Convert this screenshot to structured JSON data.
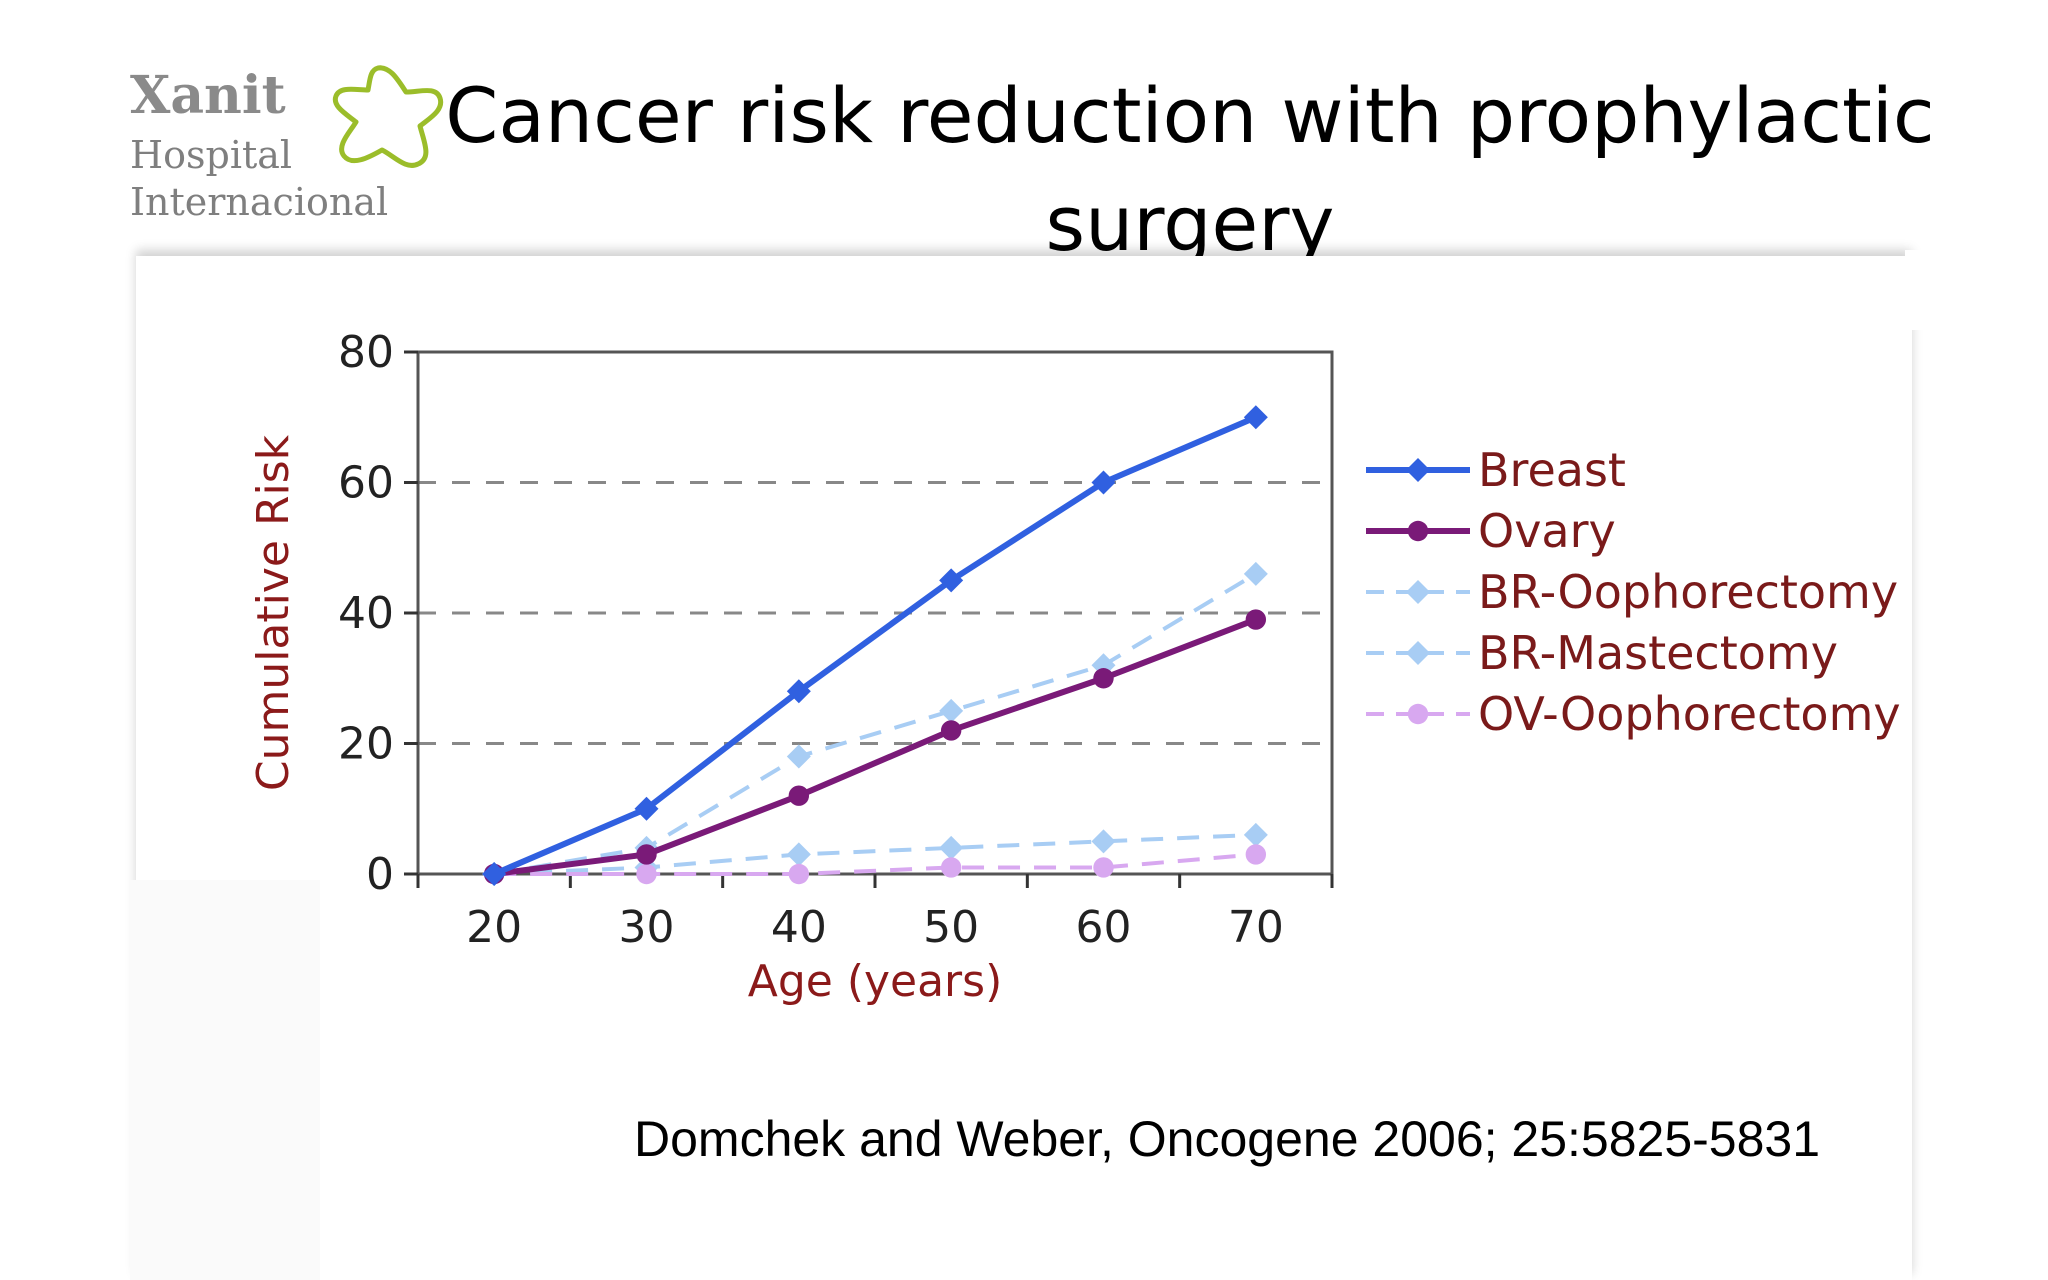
{
  "logo": {
    "line1": "Xanit",
    "line2": "Hospital",
    "line3": "Internacional"
  },
  "title": "Cancer risk reduction with prophylactic surgery",
  "citation": "Domchek and Weber, Oncogene 2006; 25:5825-5831",
  "colors": {
    "breast": "#3060e0",
    "ovary": "#7a1a78",
    "light_blue": "#a8cdf4",
    "light_purple": "#d8a8f0",
    "axis_title": "#8b1a1a",
    "logo_green": "#9bbd2a"
  },
  "chart_data": {
    "type": "line",
    "xlabel": "Age (years)",
    "ylabel": "Cumulative Risk",
    "xlim": [
      15,
      75
    ],
    "ylim": [
      0,
      80
    ],
    "xticks": [
      20,
      30,
      40,
      50,
      60,
      70
    ],
    "yticks": [
      0,
      20,
      40,
      60,
      80
    ],
    "grid": "horizontal dashed at 20, 40, 60",
    "legend_position": "right",
    "x": [
      20,
      30,
      40,
      50,
      60,
      70
    ],
    "series": [
      {
        "name": "Breast",
        "values": [
          0,
          10,
          28,
          45,
          60,
          70
        ],
        "style": "solid",
        "marker": "diamond",
        "color": "#3060e0"
      },
      {
        "name": "Ovary",
        "values": [
          0,
          3,
          12,
          22,
          30,
          39
        ],
        "style": "solid",
        "marker": "circle",
        "color": "#7a1a78"
      },
      {
        "name": "BR-Oophorectomy",
        "values": [
          0,
          4,
          18,
          25,
          32,
          46
        ],
        "style": "dashed",
        "marker": "diamond",
        "color": "#a8cdf4"
      },
      {
        "name": "BR-Mastectomy",
        "values": [
          0,
          1,
          3,
          4,
          5,
          6
        ],
        "style": "dashed",
        "marker": "diamond",
        "color": "#a8cdf4"
      },
      {
        "name": "OV-Oophorectomy",
        "values": [
          0,
          0,
          0,
          1,
          1,
          3
        ],
        "style": "dashed",
        "marker": "circle",
        "color": "#d8a8f0"
      }
    ]
  }
}
